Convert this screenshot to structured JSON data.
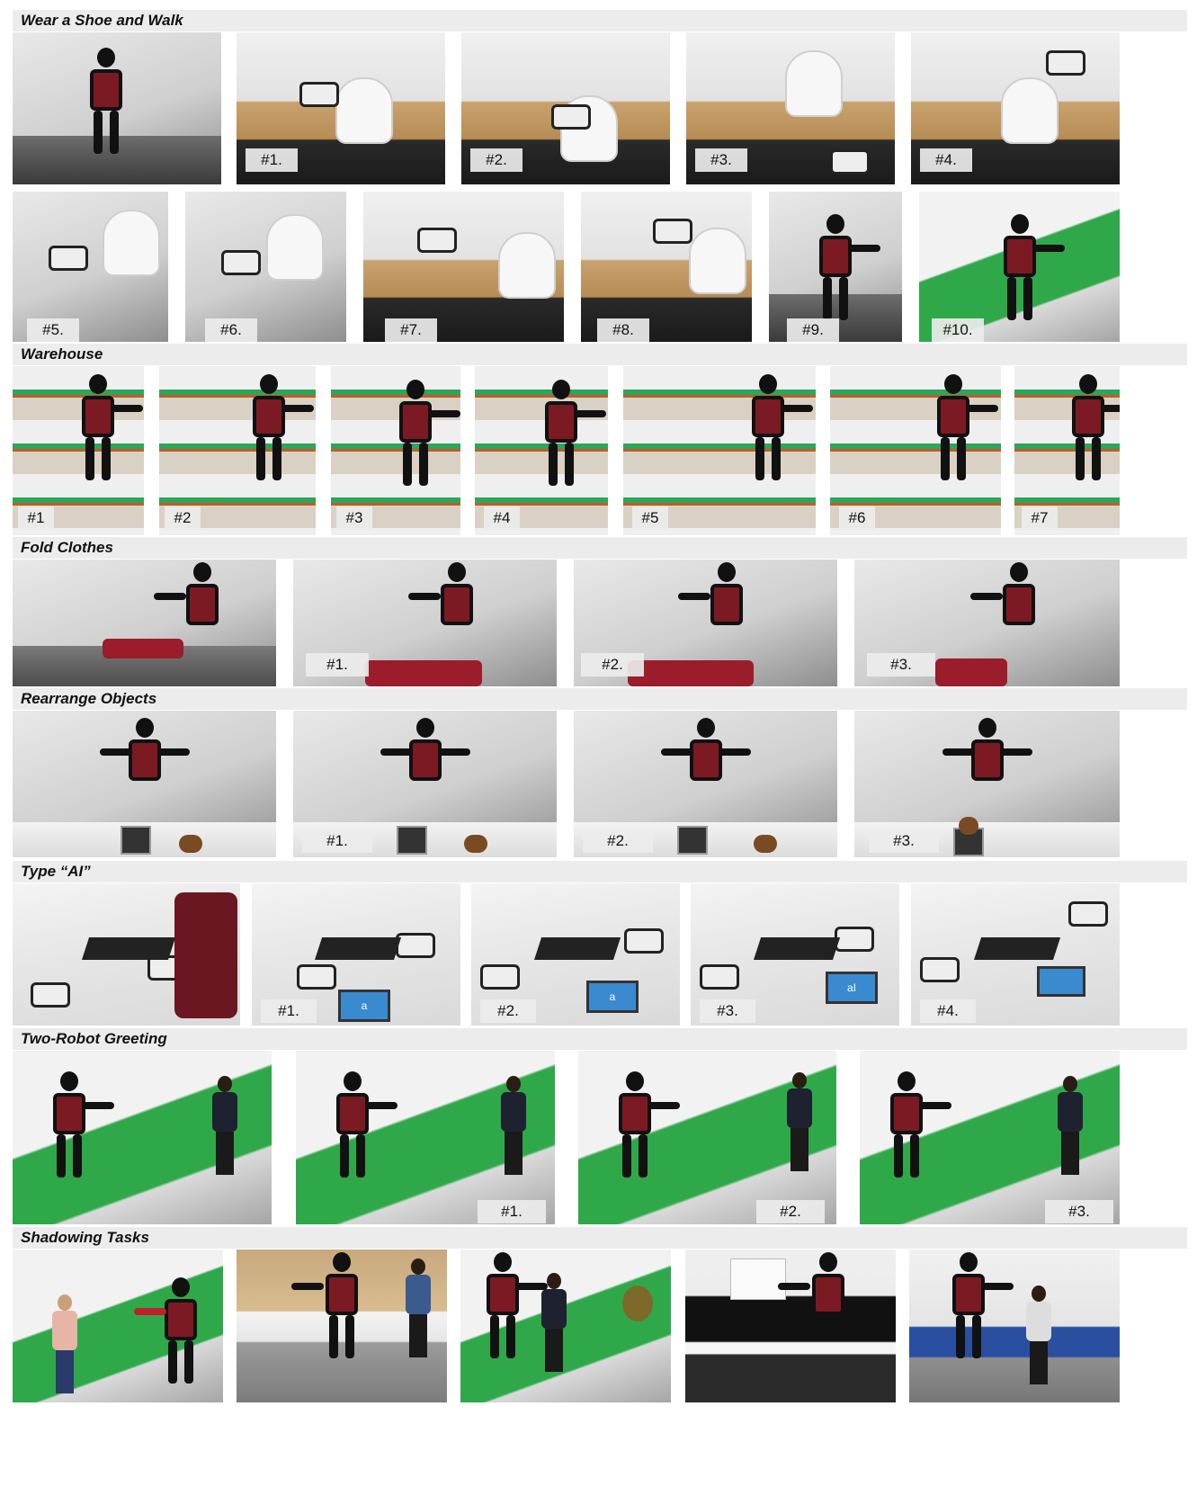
{
  "sections": [
    {
      "title": "Wear a Shoe and Walk",
      "labels": [
        "#1.",
        "#2.",
        "#3.",
        "#4.",
        "#5.",
        "#6.",
        "#7.",
        "#8.",
        "#9.",
        "#10."
      ]
    },
    {
      "title": "Warehouse",
      "labels": [
        "#1",
        "#2",
        "#3",
        "#4",
        "#5",
        "#6",
        "#7"
      ]
    },
    {
      "title": "Fold Clothes",
      "labels": [
        "#1.",
        "#2.",
        "#3."
      ]
    },
    {
      "title": "Rearrange Objects",
      "labels": [
        "#1.",
        "#2.",
        "#3."
      ]
    },
    {
      "title": "Type “AI”",
      "labels": [
        "#1.",
        "#2.",
        "#3.",
        "#4."
      ]
    },
    {
      "title": "Two-Robot Greeting",
      "labels": [
        "#1.",
        "#2.",
        "#3."
      ]
    },
    {
      "title": "Shadowing Tasks",
      "labels": []
    }
  ],
  "screen_text": [
    "a",
    "a",
    "aI"
  ]
}
